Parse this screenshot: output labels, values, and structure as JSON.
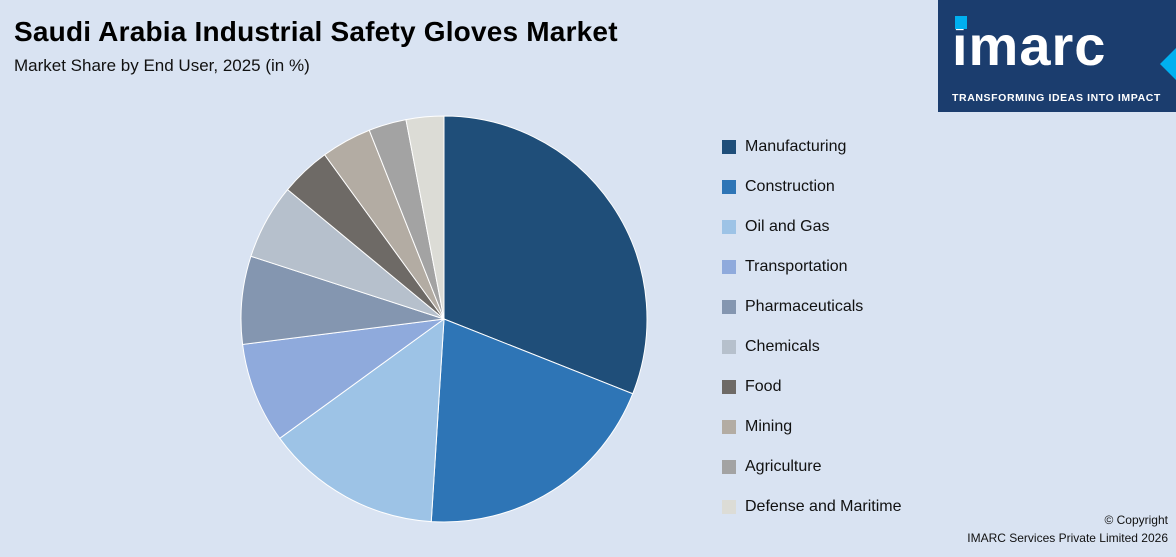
{
  "page": {
    "background": "#d9e3f2"
  },
  "header": {
    "title": "Saudi Arabia Industrial Safety Gloves Market",
    "subtitle": "Market Share by End User, 2025 (in %)"
  },
  "logo": {
    "text": "imarc",
    "tagline": "TRANSFORMING IDEAS INTO IMPACT",
    "bg_color": "#1b3d6e",
    "accent_color": "#00b0f0"
  },
  "footer": {
    "copyright_line1": "© Copyright",
    "copyright_line2": "IMARC Services Private Limited 2026"
  },
  "chart_data": {
    "type": "pie",
    "title": "Saudi Arabia Industrial Safety Gloves Market",
    "subtitle": "Market Share by End User, 2025 (in %)",
    "unit": "%",
    "start_angle_deg": 0,
    "direction": "clockwise",
    "legend_position": "right",
    "categories": [
      "Manufacturing",
      "Construction",
      "Oil and Gas",
      "Transportation",
      "Pharmaceuticals",
      "Chemicals",
      "Food",
      "Mining",
      "Agriculture",
      "Defense and Maritime"
    ],
    "values": [
      31,
      20,
      14,
      8,
      7,
      6,
      4,
      4,
      3,
      3
    ],
    "colors": [
      "#1f4e79",
      "#2e75b6",
      "#9dc3e6",
      "#8faadc",
      "#8496b0",
      "#b6c0cc",
      "#6e6a66",
      "#b3aca3",
      "#a3a3a3",
      "#dcdcd6"
    ]
  }
}
